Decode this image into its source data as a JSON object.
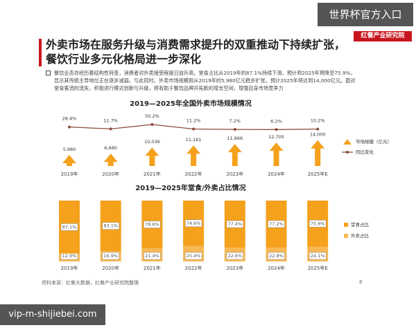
{
  "header": {
    "title": "外卖市场在服务升级与消费需求提升的双重推动下持续扩张，餐饮行业多元化格局进一步深化",
    "logo": "红餐产业研究院",
    "bullet": "餐饮业态亦经历着结构性转变，消费者对外卖接受程度日益升高，堂食占比从2019年的87.1%持续下滑，预计到2025年将降至75.9%，显示其传统主导地位正在逐步减弱。与此同时，外卖市场规模则从2019年的5,980亿元稳步扩张，预计2025年将达到14,000亿元。面对堂食客流的流失，积极进行模式创新与升级，将有助于餐饮品牌开拓新的增长空间，增强自身市场竞争力"
  },
  "overlays": {
    "top": "世界杯官方入口",
    "bottom": "vip-m-shijiebei.com"
  },
  "footer": {
    "source": "资料来源：红餐大数据，红餐产业研究院整理",
    "page_number": "8"
  },
  "chart_data": [
    {
      "type": "arrow_line",
      "title": "2019—2025年全国外卖市场规模情况",
      "categories": [
        "2019年",
        "2020年",
        "2021年",
        "2022年",
        "2023年",
        "2024年",
        "2025年E"
      ],
      "ylim": [
        0,
        15000
      ],
      "y2lim": [
        -100,
        80
      ],
      "series": [
        {
          "name": "市场规模（亿元）",
          "kind": "arrow",
          "color": "#f5a11c",
          "values": [
            5980,
            6680,
            10036,
            11161,
            11966,
            12705,
            14000
          ],
          "value_labels": [
            "5,980",
            "6,680",
            "10,036",
            "11,161",
            "11,966",
            "12,705",
            "14,000"
          ]
        },
        {
          "name": "同比变化",
          "kind": "line",
          "axis": "y2",
          "color": "#8b4a3a",
          "values": [
            28.4,
            11.7,
            50.2,
            11.2,
            7.2,
            6.2,
            10.2
          ],
          "value_labels": [
            "28.4%",
            "11.7%",
            "50.2%",
            "11.2%",
            "7.2%",
            "6.2%",
            "10.2%"
          ]
        }
      ]
    },
    {
      "type": "stacked_bar",
      "title": "2019—2025年堂食/外卖占比情况",
      "categories": [
        "2019年",
        "2020年",
        "2021年",
        "2022年",
        "2023年",
        "2024年",
        "2025年E"
      ],
      "ylim": [
        0,
        100
      ],
      "series": [
        {
          "name": "外卖占比",
          "color": "#f7b955",
          "values": [
            12.9,
            16.9,
            21.4,
            25.4,
            22.6,
            22.8,
            24.1
          ],
          "value_labels": [
            "12.9%",
            "16.9%",
            "21.4%",
            "25.4%",
            "22.6%",
            "22.8%",
            "24.1%"
          ]
        },
        {
          "name": "堂食占比",
          "color": "#f5a11c",
          "values": [
            87.1,
            83.1,
            78.6,
            74.6,
            77.4,
            77.2,
            75.9
          ],
          "value_labels": [
            "87.1%",
            "83.1%",
            "78.6%",
            "74.6%",
            "77.4%",
            "77.2%",
            "75.9%"
          ]
        }
      ]
    }
  ]
}
